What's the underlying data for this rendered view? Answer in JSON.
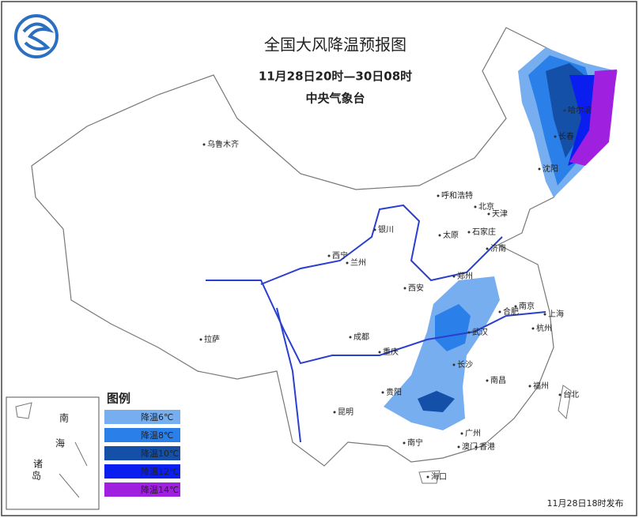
{
  "header": {
    "title": "全国大风降温预报图",
    "period": "11月28日20时—30日08时",
    "agency": "中央气象台"
  },
  "legend": {
    "title": "图例",
    "items": [
      {
        "label": "降温6℃",
        "color": "#77aef0"
      },
      {
        "label": "降温8℃",
        "color": "#2a80e8"
      },
      {
        "label": "降温10℃",
        "color": "#1450a8"
      },
      {
        "label": "降温12℃",
        "color": "#0a1ef0"
      },
      {
        "label": "降温14℃",
        "color": "#a020e0"
      }
    ]
  },
  "cities": [
    "乌鲁木齐",
    "哈尔滨",
    "长春",
    "沈阳",
    "呼和浩特",
    "北京",
    "天津",
    "银川",
    "太原",
    "石家庄",
    "济南",
    "西宁",
    "兰州",
    "郑州",
    "西安",
    "合肥",
    "南京",
    "上海",
    "武汉",
    "杭州",
    "成都",
    "重庆",
    "长沙",
    "南昌",
    "拉萨",
    "贵阳",
    "福州",
    "台北",
    "昆明",
    "南宁",
    "广州",
    "澳门",
    "香港",
    "海口"
  ],
  "inset": [
    "南",
    "海",
    "诸",
    "岛"
  ],
  "footer": "11月28日18时发布"
}
